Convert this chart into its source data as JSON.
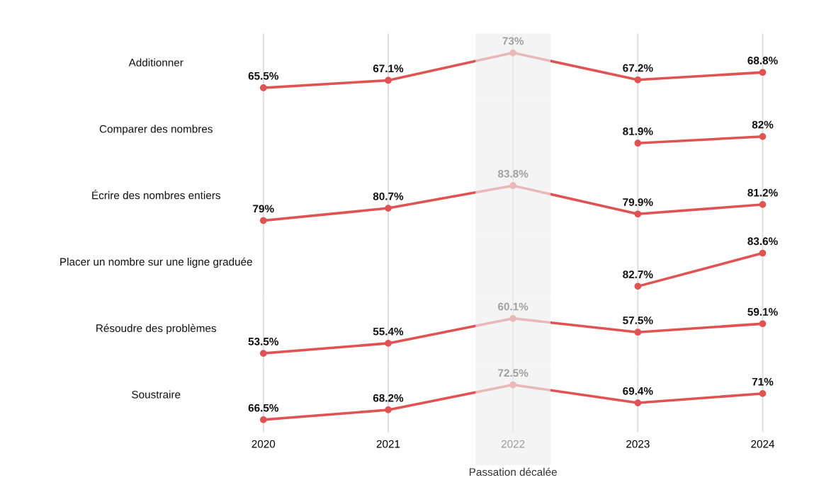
{
  "chart_data": [
    {
      "type": "line",
      "title": "Additionner",
      "categories": [
        "2020",
        "2021",
        "2022",
        "2023",
        "2024"
      ],
      "values": [
        65.5,
        67.1,
        73,
        67.2,
        68.8
      ],
      "color": "#e05353",
      "data_labels": true,
      "value_labels": [
        "65.5%",
        "67.1%",
        "73%",
        "67.2%",
        "68.8%"
      ],
      "marker": "circle",
      "grid": "x",
      "tick_labels": false,
      "bands": [
        {
          "axis": "x",
          "from": "2022",
          "to": "2022",
          "color": "#eeeeee"
        }
      ]
    },
    {
      "type": "line",
      "title": "Comparer des nombres",
      "categories": [
        "2020",
        "2021",
        "2022",
        "2023",
        "2024"
      ],
      "values": [
        null,
        null,
        null,
        81.9,
        82
      ],
      "color": "#e05353",
      "data_labels": true,
      "value_labels": [
        null,
        null,
        null,
        "81.9%",
        "82%"
      ],
      "marker": "circle",
      "grid": "x",
      "tick_labels": false,
      "bands": [
        {
          "axis": "x",
          "from": "2022",
          "to": "2022",
          "color": "#eeeeee"
        }
      ]
    },
    {
      "type": "line",
      "title": "Écrire des nombres entiers",
      "categories": [
        "2020",
        "2021",
        "2022",
        "2023",
        "2024"
      ],
      "values": [
        79,
        80.7,
        83.8,
        79.9,
        81.2
      ],
      "color": "#e05353",
      "data_labels": true,
      "value_labels": [
        "79%",
        "80.7%",
        "83.8%",
        "79.9%",
        "81.2%"
      ],
      "marker": "circle",
      "grid": "x",
      "tick_labels": false,
      "bands": [
        {
          "axis": "x",
          "from": "2022",
          "to": "2022",
          "color": "#eeeeee"
        }
      ]
    },
    {
      "type": "line",
      "title": "Placer un nombre sur une ligne graduée",
      "categories": [
        "2020",
        "2021",
        "2022",
        "2023",
        "2024"
      ],
      "values": [
        null,
        null,
        null,
        82.7,
        83.6
      ],
      "color": "#e05353",
      "data_labels": true,
      "value_labels": [
        null,
        null,
        null,
        "82.7%",
        "83.6%"
      ],
      "marker": "circle",
      "grid": "x",
      "tick_labels": false,
      "bands": [
        {
          "axis": "x",
          "from": "2022",
          "to": "2022",
          "color": "#eeeeee"
        }
      ]
    },
    {
      "type": "line",
      "title": "Résoudre des problèmes",
      "categories": [
        "2020",
        "2021",
        "2022",
        "2023",
        "2024"
      ],
      "values": [
        53.5,
        55.4,
        60.1,
        57.5,
        59.1
      ],
      "color": "#e05353",
      "data_labels": true,
      "value_labels": [
        "53.5%",
        "55.4%",
        "60.1%",
        "57.5%",
        "59.1%"
      ],
      "marker": "circle",
      "grid": "x",
      "tick_labels": false,
      "bands": [
        {
          "axis": "x",
          "from": "2022",
          "to": "2022",
          "color": "#eeeeee"
        }
      ]
    },
    {
      "type": "line",
      "title": "Soustraire",
      "categories": [
        "2020",
        "2021",
        "2022",
        "2023",
        "2024"
      ],
      "values": [
        66.5,
        68.2,
        72.5,
        69.4,
        71
      ],
      "color": "#e05353",
      "data_labels": true,
      "value_labels": [
        "66.5%",
        "68.2%",
        "72.5%",
        "69.4%",
        "71%"
      ],
      "marker": "circle",
      "grid": "x",
      "tick_labels": "x",
      "bands": [
        {
          "axis": "x",
          "from": "2022",
          "to": "2022",
          "color": "#eeeeee",
          "label": "Passation décalée"
        }
      ]
    }
  ]
}
